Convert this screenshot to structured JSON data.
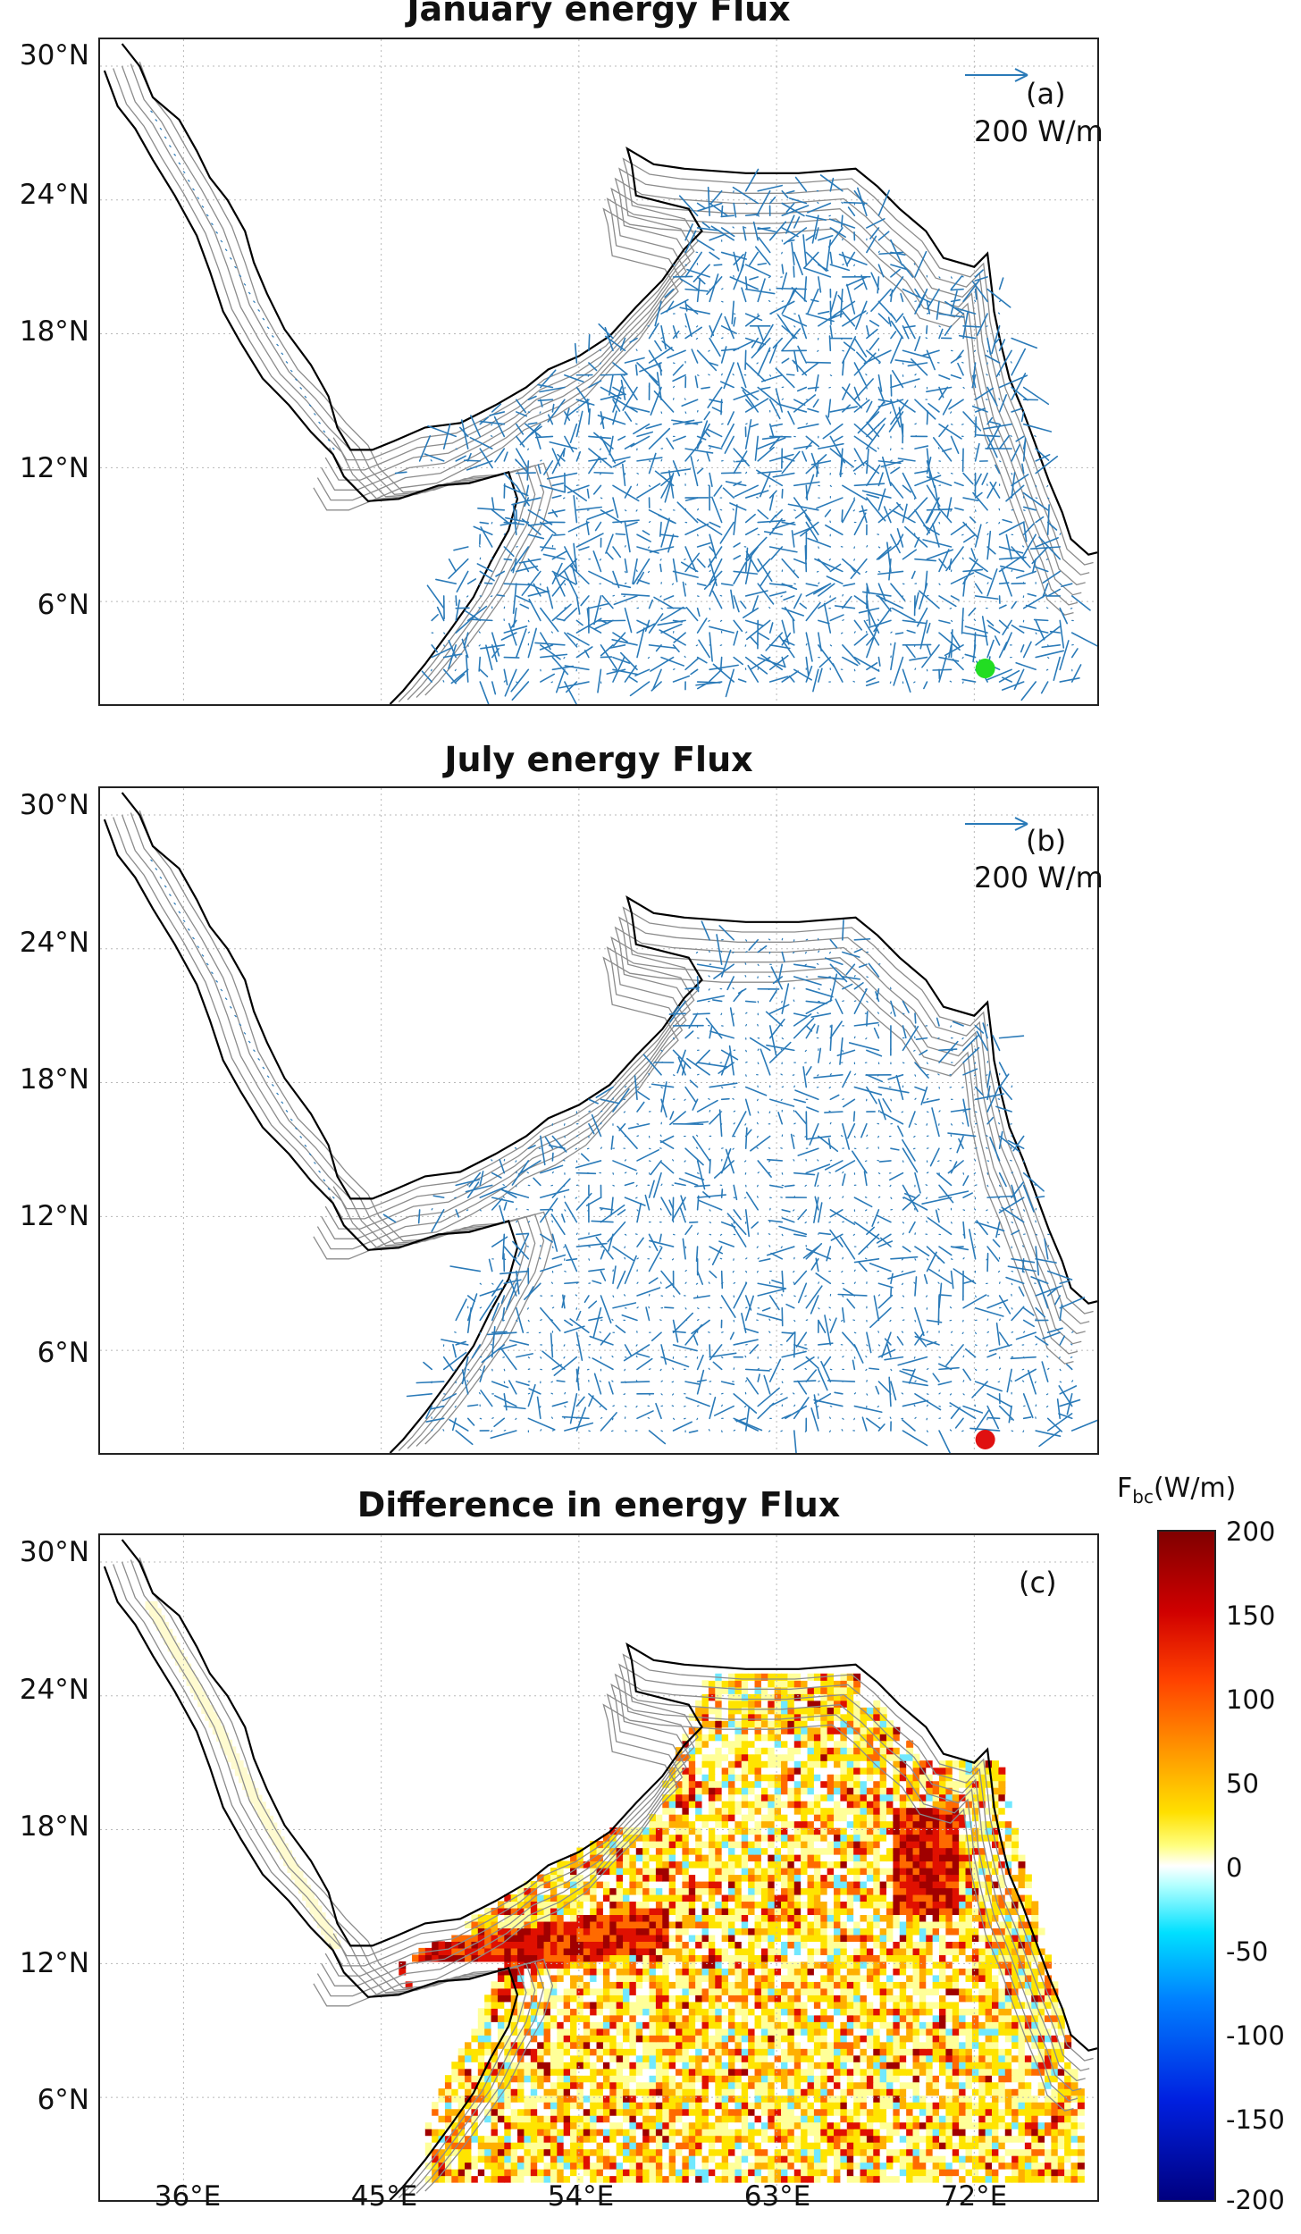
{
  "panels": [
    {
      "id": "a",
      "title": "January energy Flux",
      "label": "(a)",
      "scale_label": "200 W/m",
      "marker": "green"
    },
    {
      "id": "b",
      "title": "July energy Flux",
      "label": "(b)",
      "scale_label": "200 W/m",
      "marker": "red"
    },
    {
      "id": "c",
      "title": "Difference in energy Flux",
      "label": "(c)"
    }
  ],
  "lat_ticks": [
    "30°N",
    "24°N",
    "18°N",
    "12°N",
    "6°N"
  ],
  "lon_ticks": [
    "36°E",
    "45°E",
    "54°E",
    "63°E",
    "72°E"
  ],
  "colorbar": {
    "title": "F",
    "title_sub": "bc",
    "title_unit": "(W/m)",
    "ticks": [
      "200",
      "150",
      "100",
      "50",
      "0",
      "-50",
      "-100",
      "-150",
      "-200"
    ],
    "range": [
      -200,
      200
    ]
  },
  "colors": {
    "arrow": "#2a7ab8",
    "contour": "#8c8c8c",
    "coast": "#000000",
    "marker_green": "#22dd22",
    "marker_red": "#e01010"
  },
  "markers": {
    "green": {
      "lon": 72.5,
      "lat": 3.0
    },
    "red": {
      "lon": 72.5,
      "lat": 2.0
    }
  }
}
